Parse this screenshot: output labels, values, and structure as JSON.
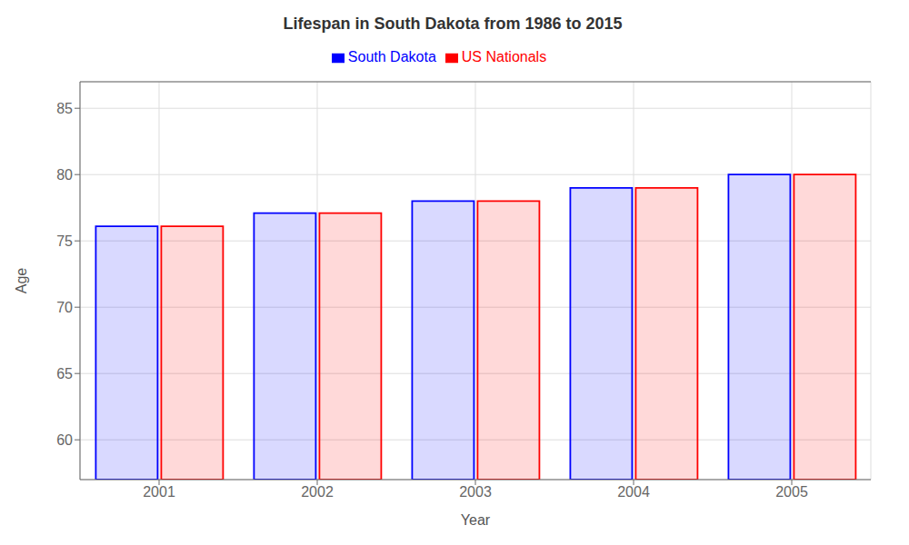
{
  "chart_data": {
    "type": "bar",
    "title": "Lifespan in South Dakota from 1986 to 2015",
    "x_label": "Year",
    "y_label": "Age",
    "categories": [
      "2001",
      "2002",
      "2003",
      "2004",
      "2005"
    ],
    "series": [
      {
        "name": "South Dakota",
        "color": "#0000ff",
        "values": [
          76.1,
          77.1,
          78.0,
          79.0,
          80.0
        ]
      },
      {
        "name": "US Nationals",
        "color": "#ff0000",
        "values": [
          76.1,
          77.1,
          78.0,
          79.0,
          80.0
        ]
      }
    ],
    "ylim": [
      57,
      87
    ],
    "yticks": [
      60,
      65,
      70,
      75,
      80,
      85
    ],
    "grid": true,
    "legend": "top"
  }
}
